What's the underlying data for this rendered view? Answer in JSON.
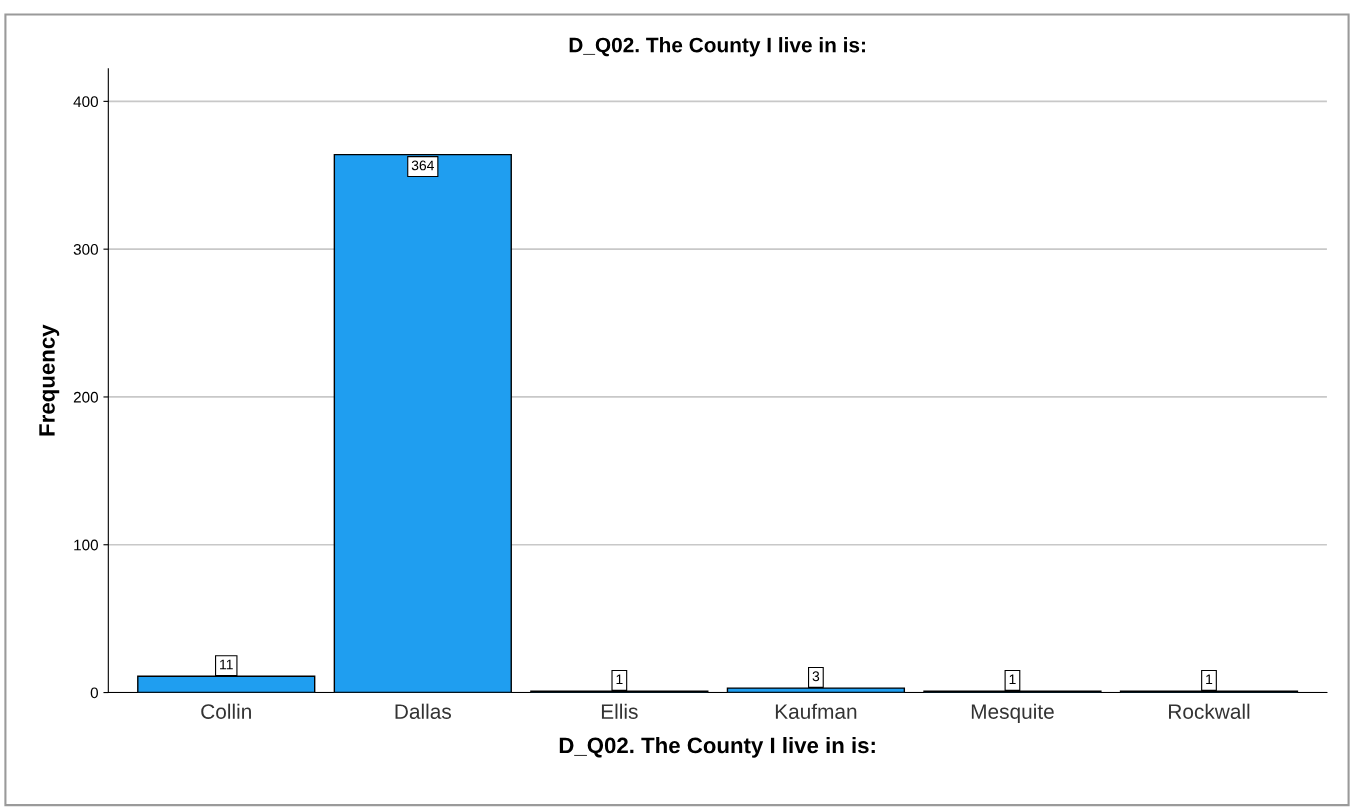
{
  "chart_data": {
    "type": "bar",
    "title": "D_Q02. The County I live in is:",
    "xlabel": "D_Q02. The County I live in is:",
    "ylabel": "Frequency",
    "categories": [
      "Collin",
      "Dallas",
      "Ellis",
      "Kaufman",
      "Mesquite",
      "Rockwall"
    ],
    "values": [
      11,
      364,
      1,
      3,
      1,
      1
    ],
    "color": "#1f9ef0",
    "ylim": [
      0,
      422
    ],
    "yticks": [
      0,
      100,
      200,
      300,
      400
    ],
    "grid": "y",
    "data_labels": true
  }
}
